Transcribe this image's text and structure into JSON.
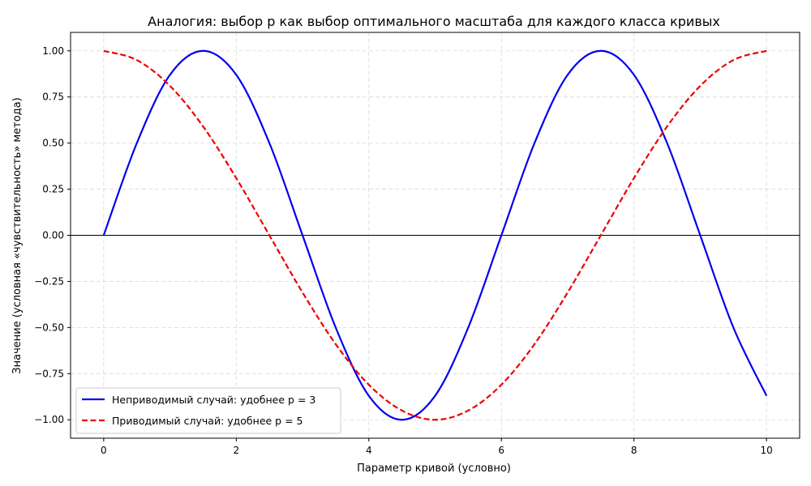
{
  "chart_data": {
    "type": "line",
    "title": "Аналогия: выбор p как выбор оптимального масштаба для каждого класса кривых",
    "xlabel": "Параметр кривой (условно)",
    "ylabel": "Значение (условная «чувствительность» метода)",
    "xlim": [
      -0.5,
      10.5
    ],
    "ylim": [
      -1.1,
      1.1
    ],
    "x_ticks": [
      0,
      2,
      4,
      6,
      8,
      10
    ],
    "x_tick_labels": [
      "0",
      "2",
      "4",
      "6",
      "8",
      "10"
    ],
    "y_ticks": [
      1.0,
      0.75,
      0.5,
      0.25,
      0.0,
      -0.25,
      -0.5,
      -0.75,
      -1.0
    ],
    "y_tick_labels": [
      "1.00",
      "0.75",
      "0.50",
      "0.25",
      "0.00",
      "−0.25",
      "−0.50",
      "−0.75",
      "−1.00"
    ],
    "grid": true,
    "reference_line_y": 0,
    "legend_position": "lower-left",
    "series": [
      {
        "name": "Неприводимый случай: удобнее p = 3",
        "color": "#0000ee",
        "style": "solid",
        "x": [
          0,
          0.5,
          1.0,
          1.5,
          2.0,
          2.5,
          3.0,
          3.5,
          4.0,
          4.5,
          5.0,
          5.5,
          6.0,
          6.5,
          7.0,
          7.5,
          8.0,
          8.5,
          9.0,
          9.5,
          10.0
        ],
        "y": [
          0,
          0.5,
          0.87,
          1.0,
          0.87,
          0.5,
          0,
          -0.5,
          -0.87,
          -1.0,
          -0.87,
          -0.5,
          0,
          0.5,
          0.87,
          1.0,
          0.87,
          0.5,
          0,
          -0.5,
          -0.87
        ]
      },
      {
        "name": "Приводимый случай: удобнее p = 5",
        "color": "#ee0000",
        "style": "dashed",
        "x": [
          0,
          0.5,
          1.0,
          1.5,
          2.0,
          2.5,
          3.0,
          3.5,
          4.0,
          4.5,
          5.0,
          5.5,
          6.0,
          6.5,
          7.0,
          7.5,
          8.0,
          8.5,
          9.0,
          9.5,
          10.0
        ],
        "y": [
          1.0,
          0.95,
          0.81,
          0.59,
          0.31,
          0,
          -0.31,
          -0.59,
          -0.81,
          -0.95,
          -1.0,
          -0.95,
          -0.81,
          -0.59,
          -0.31,
          0,
          0.31,
          0.59,
          0.81,
          0.95,
          1.0
        ]
      }
    ]
  }
}
